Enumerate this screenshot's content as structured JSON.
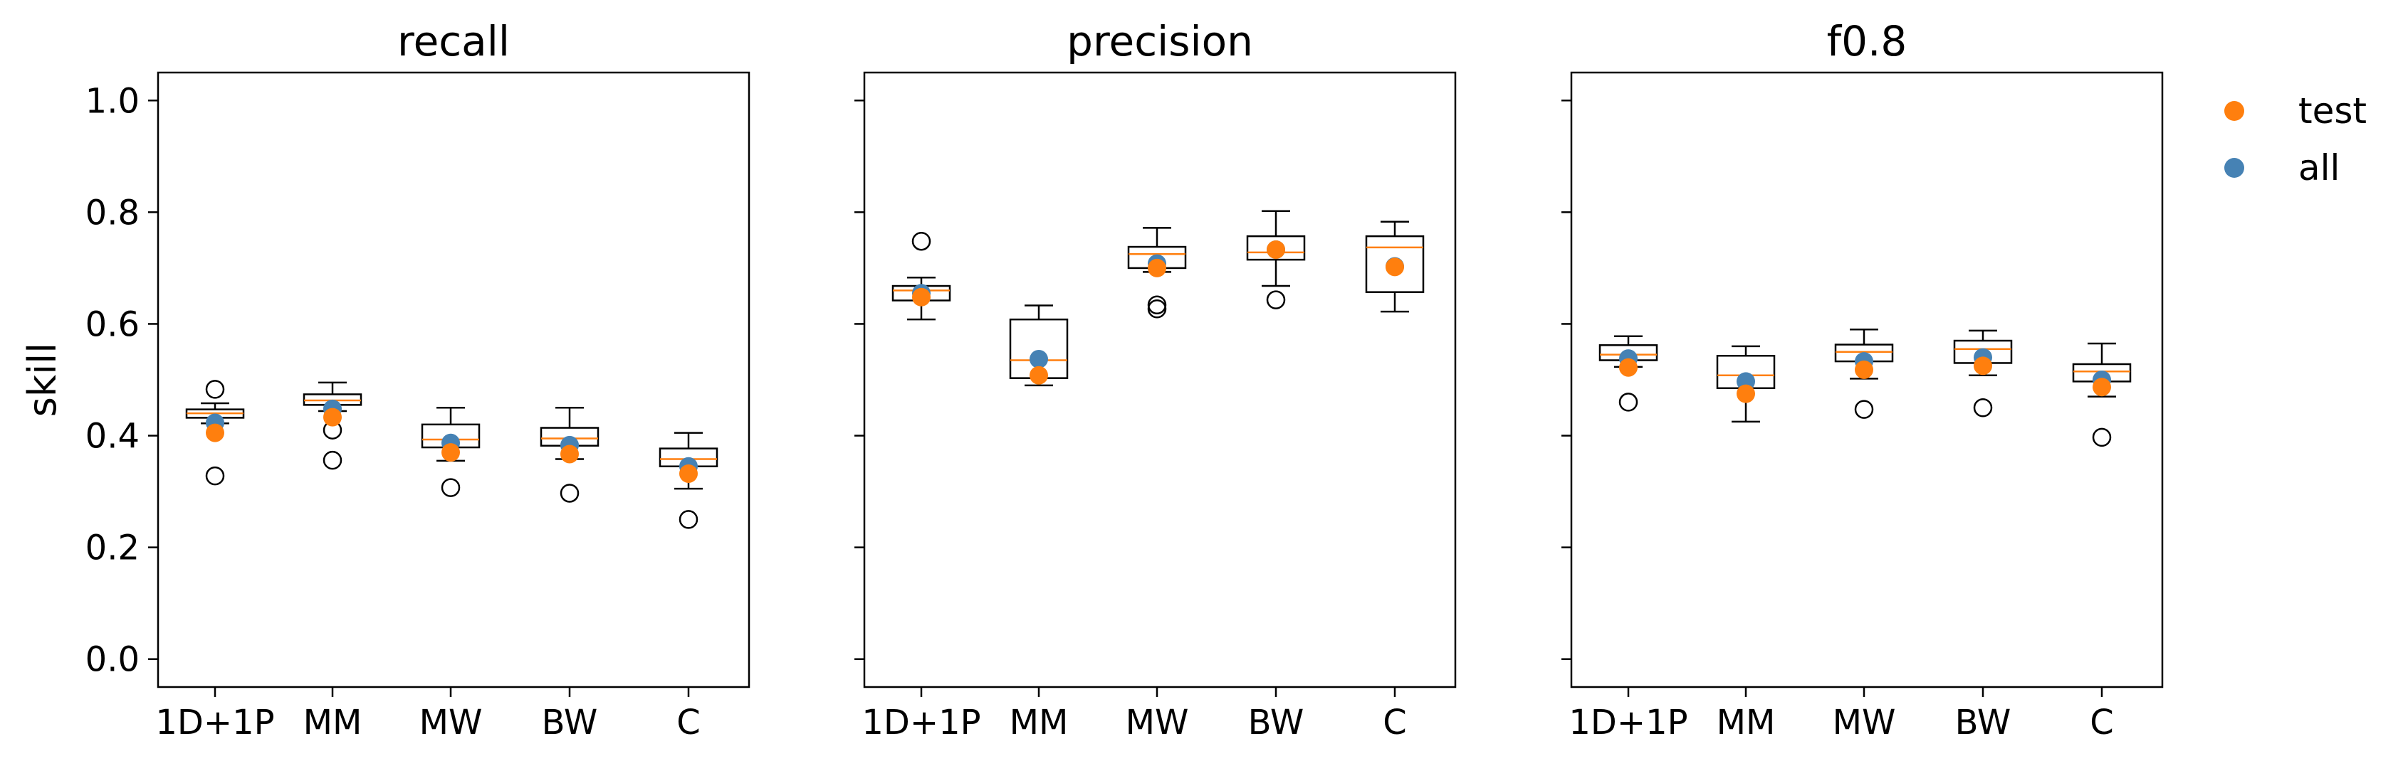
{
  "legend": {
    "placement": "outside-right",
    "entries": [
      {
        "label": "test",
        "color": "#ff7f0e"
      },
      {
        "label": "all",
        "color": "#4682b4"
      }
    ]
  },
  "colors": {
    "box": "#000000",
    "median": "#ff7f0e",
    "test": "#ff7f0e",
    "all": "#4682b4"
  },
  "chart_data": [
    {
      "type": "box",
      "title": "recall",
      "ylabel": "skill",
      "ylim": [
        -0.05,
        1.05
      ],
      "yticks": [
        "0.0",
        "0.2",
        "0.4",
        "0.6",
        "0.8",
        "1.0"
      ],
      "categories": [
        "1D+1P",
        "MM",
        "MW",
        "BW",
        "C"
      ],
      "boxes": [
        {
          "whislo": 0.422,
          "q1": 0.432,
          "med": 0.44,
          "q3": 0.447,
          "whishi": 0.458,
          "fliers": [
            0.483,
            0.328
          ]
        },
        {
          "whislo": 0.444,
          "q1": 0.455,
          "med": 0.463,
          "q3": 0.474,
          "whishi": 0.495,
          "fliers": [
            0.41,
            0.356
          ]
        },
        {
          "whislo": 0.355,
          "q1": 0.379,
          "med": 0.393,
          "q3": 0.42,
          "whishi": 0.45,
          "fliers": [
            0.307
          ]
        },
        {
          "whislo": 0.358,
          "q1": 0.382,
          "med": 0.395,
          "q3": 0.414,
          "whishi": 0.45,
          "fliers": [
            0.297
          ]
        },
        {
          "whislo": 0.305,
          "q1": 0.345,
          "med": 0.358,
          "q3": 0.377,
          "whishi": 0.405,
          "fliers": [
            0.25
          ]
        }
      ],
      "series": [
        {
          "name": "test",
          "values": [
            0.405,
            0.433,
            0.37,
            0.367,
            0.332
          ]
        },
        {
          "name": "all",
          "values": [
            0.423,
            0.448,
            0.387,
            0.383,
            0.345
          ]
        }
      ]
    },
    {
      "type": "box",
      "title": "precision",
      "ylim": [
        -0.05,
        1.05
      ],
      "categories": [
        "1D+1P",
        "MM",
        "MW",
        "BW",
        "C"
      ],
      "boxes": [
        {
          "whislo": 0.608,
          "q1": 0.642,
          "med": 0.66,
          "q3": 0.668,
          "whishi": 0.683,
          "fliers": [
            0.748
          ]
        },
        {
          "whislo": 0.49,
          "q1": 0.503,
          "med": 0.535,
          "q3": 0.608,
          "whishi": 0.633,
          "fliers": []
        },
        {
          "whislo": 0.693,
          "q1": 0.7,
          "med": 0.725,
          "q3": 0.738,
          "whishi": 0.772,
          "fliers": [
            0.634,
            0.627
          ]
        },
        {
          "whislo": 0.668,
          "q1": 0.715,
          "med": 0.728,
          "q3": 0.757,
          "whishi": 0.802,
          "fliers": [
            0.643
          ]
        },
        {
          "whislo": 0.622,
          "q1": 0.657,
          "med": 0.737,
          "q3": 0.757,
          "whishi": 0.783,
          "fliers": []
        }
      ],
      "series": [
        {
          "name": "test",
          "values": [
            0.648,
            0.508,
            0.7,
            0.733,
            0.702
          ]
        },
        {
          "name": "all",
          "values": [
            0.655,
            0.537,
            0.708,
            0.733,
            0.703
          ]
        }
      ]
    },
    {
      "type": "box",
      "title": "f0.8",
      "ylim": [
        -0.05,
        1.05
      ],
      "categories": [
        "1D+1P",
        "MM",
        "MW",
        "BW",
        "C"
      ],
      "boxes": [
        {
          "whislo": 0.523,
          "q1": 0.535,
          "med": 0.545,
          "q3": 0.562,
          "whishi": 0.578,
          "fliers": [
            0.46
          ]
        },
        {
          "whislo": 0.425,
          "q1": 0.485,
          "med": 0.508,
          "q3": 0.543,
          "whishi": 0.56,
          "fliers": []
        },
        {
          "whislo": 0.502,
          "q1": 0.533,
          "med": 0.55,
          "q3": 0.563,
          "whishi": 0.59,
          "fliers": [
            0.447
          ]
        },
        {
          "whislo": 0.508,
          "q1": 0.53,
          "med": 0.555,
          "q3": 0.57,
          "whishi": 0.588,
          "fliers": [
            0.45
          ]
        },
        {
          "whislo": 0.47,
          "q1": 0.497,
          "med": 0.515,
          "q3": 0.528,
          "whishi": 0.565,
          "fliers": [
            0.397
          ]
        }
      ],
      "series": [
        {
          "name": "test",
          "values": [
            0.522,
            0.475,
            0.518,
            0.525,
            0.487
          ]
        },
        {
          "name": "all",
          "values": [
            0.538,
            0.497,
            0.533,
            0.54,
            0.5
          ]
        }
      ]
    }
  ]
}
